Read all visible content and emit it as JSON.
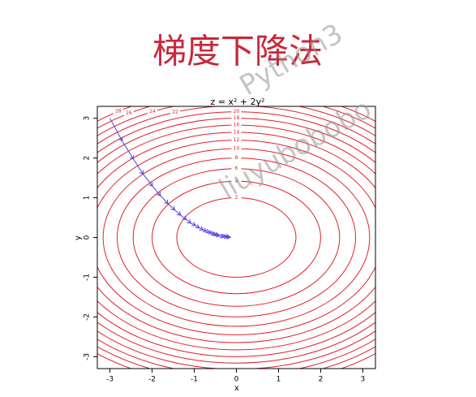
{
  "page_title": "梯度下降法",
  "watermarks": [
    "Python3",
    "liuyubobobo"
  ],
  "chart_data": {
    "type": "contour",
    "title": "z = x² + 2y²",
    "x_label": "x",
    "y_label": "y",
    "levels": [
      2,
      4,
      6,
      8,
      10,
      12,
      14,
      16,
      18,
      20,
      22,
      24,
      26,
      28
    ],
    "color": "#e0202a",
    "path": {
      "color": "#5a3de0",
      "x": [
        -3,
        -2.71,
        -2.44,
        -2.21,
        -1.99,
        -1.8,
        -1.62,
        -1.46,
        -1.32,
        -1.19,
        -1.08,
        -0.97,
        -0.88,
        -0.79,
        -0.71,
        -0.64,
        -0.58,
        -0.52,
        -0.47,
        -0.43,
        -0.39,
        -0.31,
        -0.26,
        -0.21,
        -0.17,
        -0.14
      ],
      "y": [
        3,
        2.43,
        1.97,
        1.59,
        1.29,
        1.05,
        0.85,
        0.69,
        0.56,
        0.45,
        0.36,
        0.3,
        0.24,
        0.19,
        0.16,
        0.13,
        0.1,
        0.08,
        0.07,
        0.05,
        0.04,
        0.03,
        0.02,
        0.02,
        0.01,
        0.01
      ]
    },
    "xlim": [
      -3.3,
      3.3
    ],
    "ylim": [
      -3.3,
      3.3
    ],
    "xticks": [
      -3,
      -2,
      -1,
      0,
      1,
      2,
      3
    ],
    "yticks": [
      -3,
      -2,
      -1,
      0,
      1,
      2,
      3
    ]
  }
}
